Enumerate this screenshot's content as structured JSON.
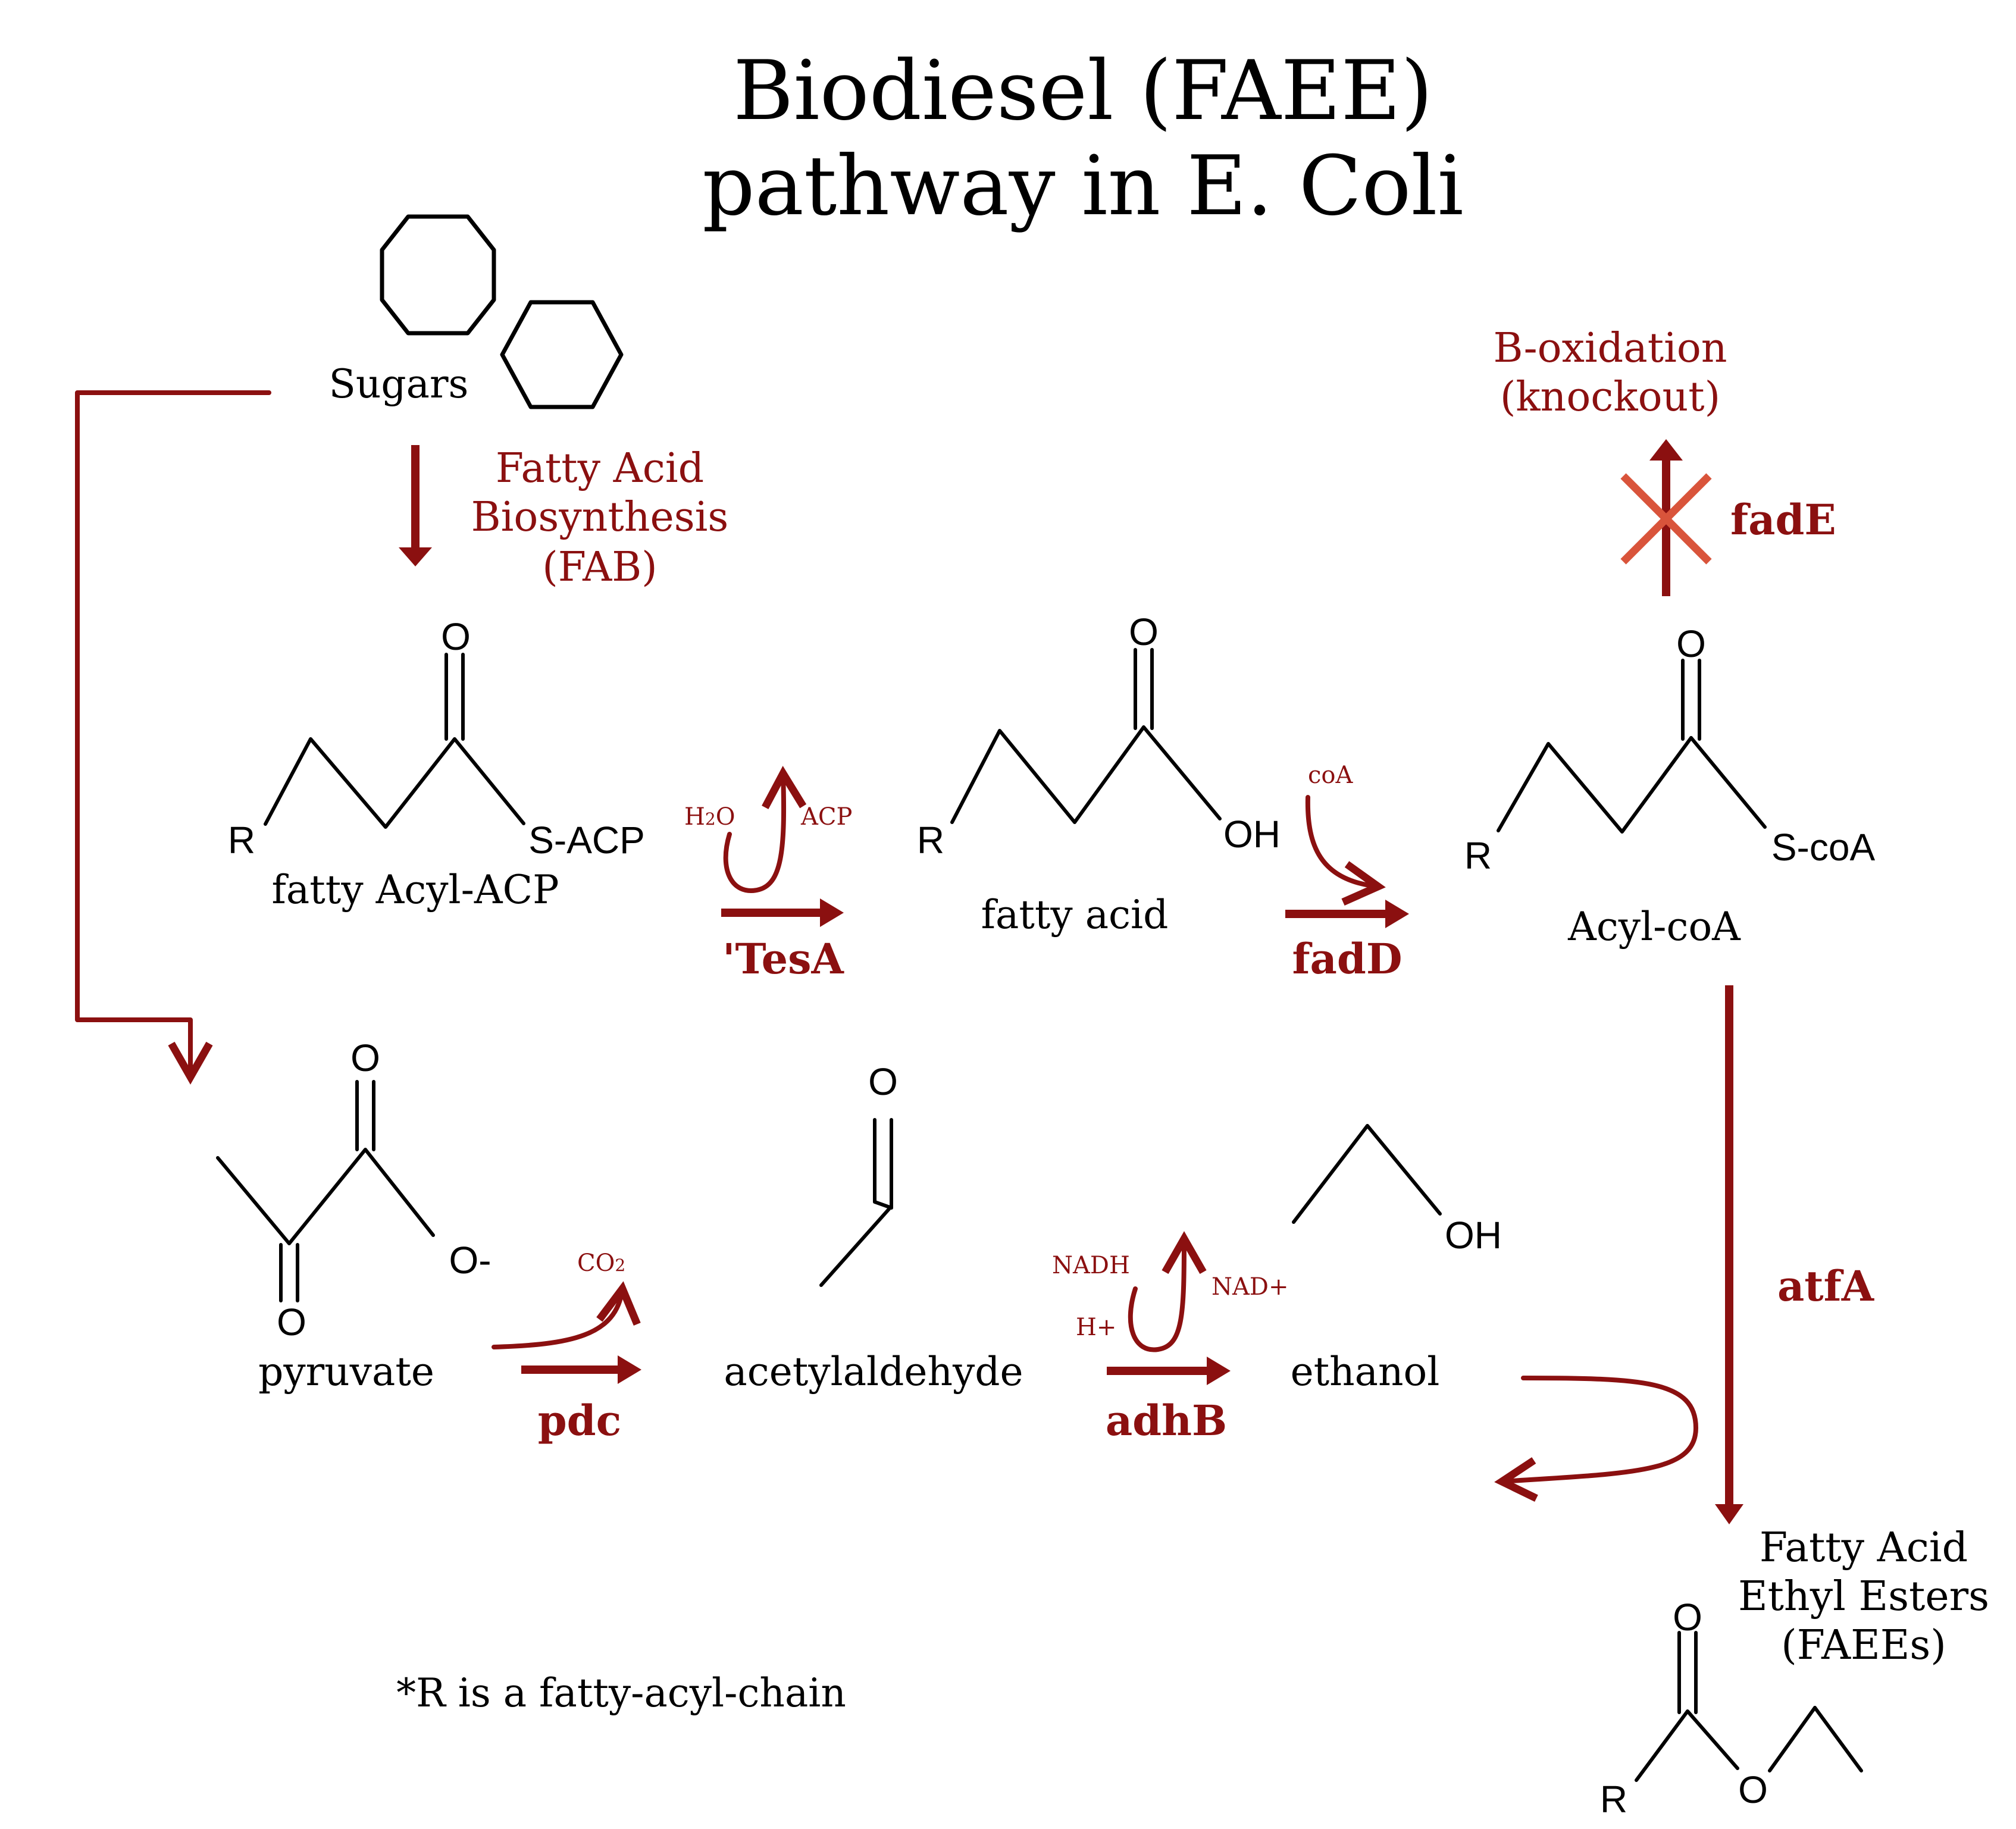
{
  "title": {
    "line1": "Biodiesel (FAEE)",
    "line2": "pathway in E. Coli"
  },
  "colors": {
    "accent": "#8b1010",
    "knockout": "#d9543b",
    "ink": "#000000"
  },
  "labels": {
    "sugars": "Sugars",
    "fab": [
      "Fatty Acid",
      "Biosynthesis",
      "(FAB)"
    ],
    "boxidation": [
      "B-oxidation",
      "(knockout)"
    ],
    "fadE": "fadE",
    "fatty_acyl_acp": "fatty Acyl-ACP",
    "fatty_acid": "fatty acid",
    "acyl_coa": "Acyl-coA",
    "pyruvate": "pyruvate",
    "acetylaldehyde": "acetylaldehyde",
    "ethanol": "ethanol",
    "faees": [
      "Fatty Acid",
      "Ethyl Esters",
      "(FAEEs)"
    ],
    "footnote": "*R is a fatty-acyl-chain"
  },
  "enzymes": {
    "tesA": "'TesA",
    "fadD": "fadD",
    "atfA": "atfA",
    "pdc": "pdc",
    "adhB": "adhB"
  },
  "cofactors": {
    "h2o": "H2O",
    "acp": "ACP",
    "coa": "coA",
    "co2": "CO2",
    "nadh": "NADH",
    "hplus": "H+",
    "nadplus": "NAD+"
  },
  "atoms": {
    "O": "O",
    "R": "R",
    "OH": "OH",
    "S_ACP": "S-ACP",
    "S_coA": "S-coA",
    "O_minus": "O-"
  }
}
